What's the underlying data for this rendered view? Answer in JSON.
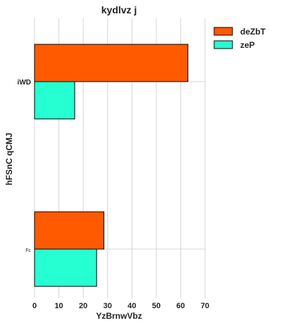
{
  "chart_data": {
    "type": "bar",
    "orientation": "horizontal",
    "title": "kydlvz  j",
    "xlabel": "YzBrnwVbz",
    "ylabel": "hFSnC qCMJ",
    "categories": [
      "iWD",
      "Fc"
    ],
    "series": [
      {
        "name": "deZbT",
        "color": "#ff5a00",
        "values": [
          63,
          28.5
        ]
      },
      {
        "name": "zeP",
        "color": "#26ffd1",
        "values": [
          16.5,
          25.5
        ]
      }
    ],
    "xlim": [
      0,
      70
    ],
    "xticks": [
      0,
      10,
      20,
      30,
      40,
      50,
      60,
      70
    ],
    "grid": true,
    "legend_position": "outside-top-right"
  }
}
